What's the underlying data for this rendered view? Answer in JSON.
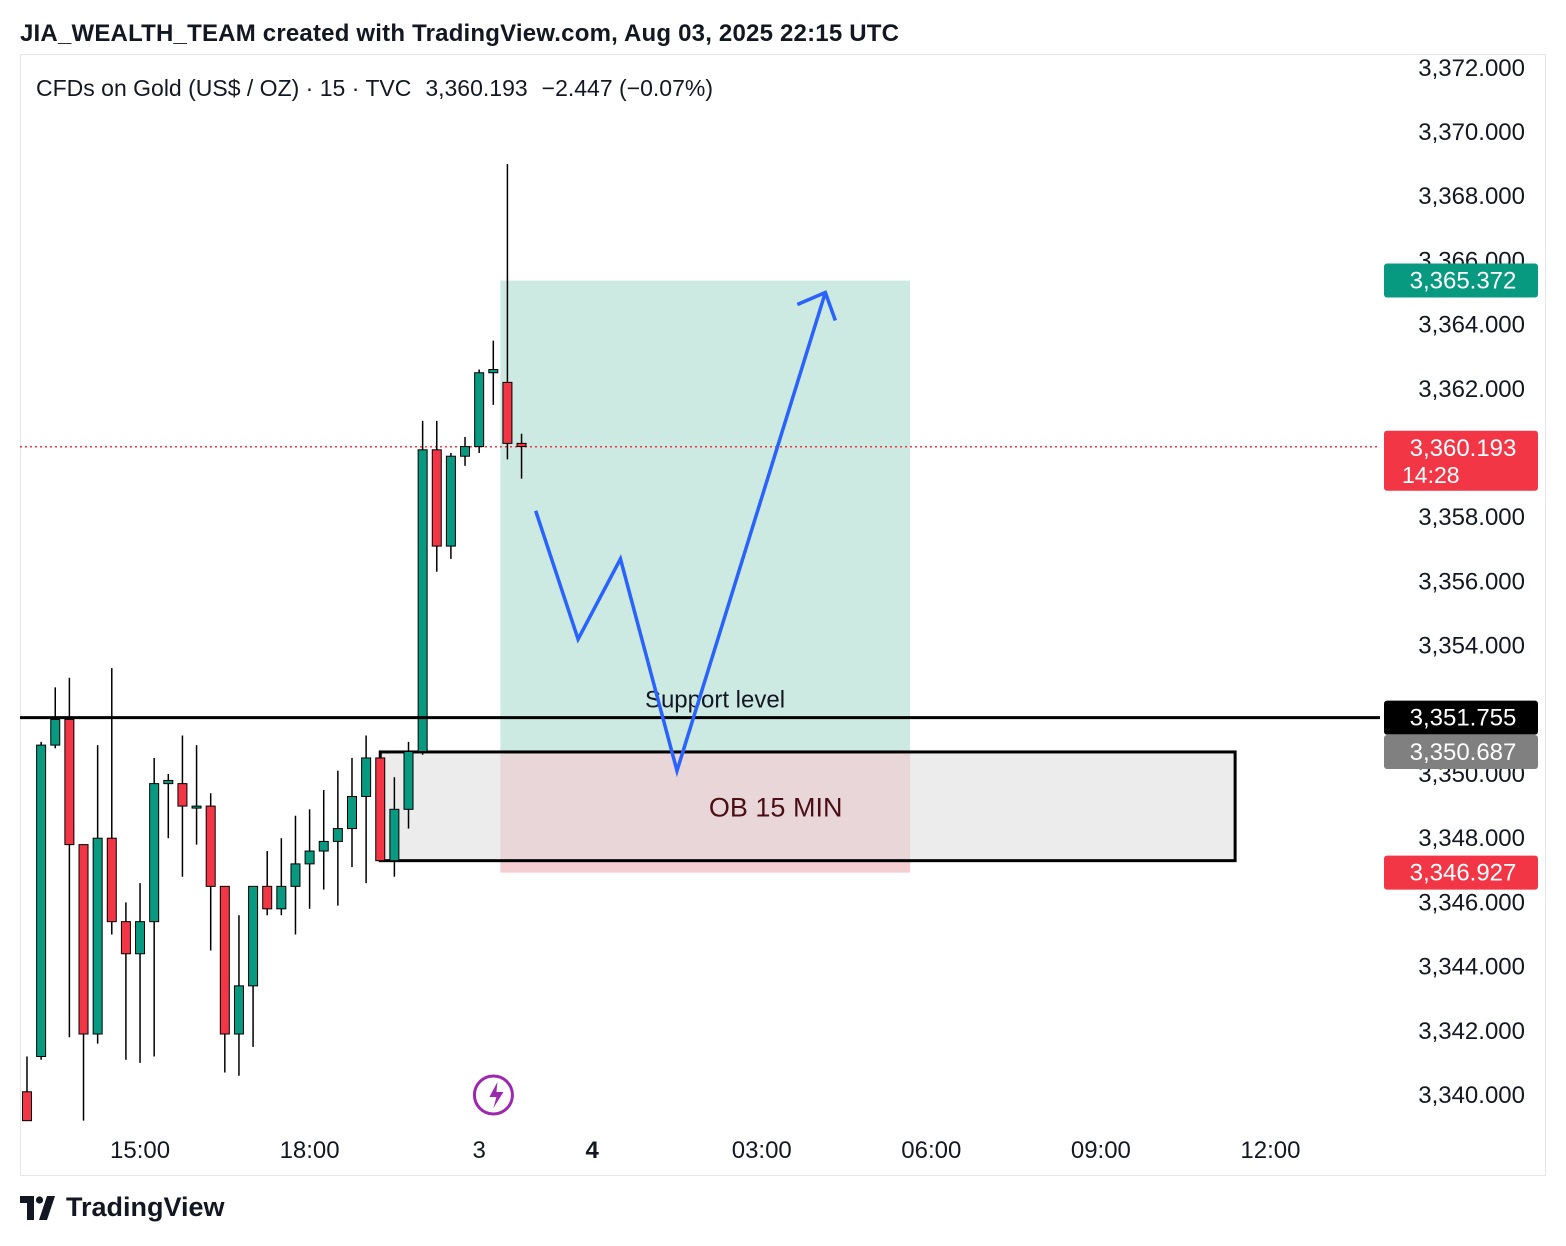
{
  "header": {
    "title": "JIA_WEALTH_TEAM created with TradingView.com, Aug 03, 2025 22:15 UTC"
  },
  "legend": {
    "symbol": "CFDs on Gold (US$ / OZ) · 15 · TVC",
    "last": "3,360.193",
    "change": "−2.447 (−0.07%)"
  },
  "colors": {
    "up": "#089981",
    "down": "#f23645",
    "target_zone": "#cce9e2",
    "stop_zone": "#f3c5cb",
    "ob_box": "#dcdcdc",
    "arrow": "#2962ff",
    "last_price_line": "#f23645",
    "flash_icon": "#9c27b0"
  },
  "chart_data": {
    "type": "candlestick",
    "symbol": "CFDs on Gold (US$ / OZ)",
    "interval": "15",
    "y_range": [
      3339,
      3373
    ],
    "y_ticks": [
      "3,340.000",
      "3,342.000",
      "3,344.000",
      "3,346.000",
      "3,348.000",
      "3,350.000",
      "3,352.000",
      "3,354.000",
      "3,356.000",
      "3,358.000",
      "3,360.000",
      "3,362.000",
      "3,364.000",
      "3,366.000",
      "3,368.000",
      "3,370.000",
      "3,372.000"
    ],
    "y_tick_values": [
      3340,
      3342,
      3344,
      3346,
      3348,
      3350,
      3352,
      3354,
      3356,
      3358,
      3360,
      3362,
      3364,
      3366,
      3368,
      3370,
      3372
    ],
    "x_labels": [
      {
        "label": "15:00",
        "bar": 8,
        "bold": false
      },
      {
        "label": "18:00",
        "bar": 20,
        "bold": false
      },
      {
        "label": "3",
        "bar": 32,
        "bold": false
      },
      {
        "label": "4",
        "bar": 40,
        "bold": true
      },
      {
        "label": "03:00",
        "bar": 52,
        "bold": false
      },
      {
        "label": "06:00",
        "bar": 64,
        "bold": false
      },
      {
        "label": "09:00",
        "bar": 76,
        "bold": false
      },
      {
        "label": "12:00",
        "bar": 88,
        "bold": false
      }
    ],
    "candles": [
      [
        3340.1,
        3339.2,
        3341.2,
        3339.2
      ],
      [
        3341.2,
        3350.9,
        3351.0,
        3341.1
      ],
      [
        3350.9,
        3351.7,
        3352.7,
        3350.8
      ],
      [
        3351.7,
        3347.8,
        3353.0,
        3341.8
      ],
      [
        3347.8,
        3341.9,
        3347.8,
        3339.2
      ],
      [
        3341.9,
        3348.0,
        3350.9,
        3341.6
      ],
      [
        3348.0,
        3345.4,
        3353.3,
        3345.0
      ],
      [
        3345.4,
        3344.4,
        3346.0,
        3341.1
      ],
      [
        3344.4,
        3345.4,
        3346.6,
        3341.0
      ],
      [
        3345.4,
        3349.7,
        3350.5,
        3341.2
      ],
      [
        3349.7,
        3349.8,
        3350.0,
        3348.0
      ],
      [
        3349.7,
        3349.0,
        3351.2,
        3346.8
      ],
      [
        3349.0,
        3349.0,
        3350.9,
        3347.8
      ],
      [
        3349.0,
        3346.5,
        3349.4,
        3344.5
      ],
      [
        3346.5,
        3341.9,
        3346.5,
        3340.7
      ],
      [
        3341.9,
        3343.4,
        3345.6,
        3340.6
      ],
      [
        3343.4,
        3346.5,
        3346.5,
        3341.5
      ],
      [
        3346.5,
        3345.8,
        3347.6,
        3345.6
      ],
      [
        3345.8,
        3346.5,
        3348.0,
        3345.6
      ],
      [
        3346.5,
        3347.2,
        3348.7,
        3345.0
      ],
      [
        3347.2,
        3347.6,
        3348.9,
        3345.8
      ],
      [
        3347.6,
        3347.9,
        3349.5,
        3346.4
      ],
      [
        3347.9,
        3348.3,
        3350.1,
        3345.9
      ],
      [
        3348.3,
        3349.3,
        3350.5,
        3347.1
      ],
      [
        3349.3,
        3350.5,
        3351.2,
        3346.6
      ],
      [
        3350.5,
        3347.3,
        3350.7,
        3347.3
      ],
      [
        3347.3,
        3348.9,
        3349.9,
        3346.8
      ],
      [
        3348.9,
        3350.7,
        3351.0,
        3348.3
      ],
      [
        3350.7,
        3360.1,
        3361.0,
        3350.6
      ],
      [
        3360.1,
        3357.1,
        3361.0,
        3356.3
      ],
      [
        3357.1,
        3359.9,
        3360.0,
        3356.7
      ],
      [
        3359.9,
        3360.2,
        3360.5,
        3359.6
      ],
      [
        3360.2,
        3362.5,
        3362.6,
        3360.0
      ],
      [
        3362.5,
        3362.6,
        3363.5,
        3361.5
      ],
      [
        3362.2,
        3360.3,
        3369.0,
        3359.8
      ],
      [
        3360.3,
        3360.2,
        3360.6,
        3359.2
      ]
    ],
    "last_price": 3360.193,
    "countdown": "14:28",
    "support_level": 3351.755,
    "position": {
      "target": 3365.372,
      "entry": 3350.687,
      "stop": 3346.927,
      "start_bar": 33.5,
      "end_bar": 62.5
    },
    "order_block": {
      "top": 3350.687,
      "bottom": 3347.3,
      "start_bar": 25,
      "end_bar": 85.5
    },
    "projection_path": [
      [
        36.0,
        3358.2
      ],
      [
        39.0,
        3354.2
      ],
      [
        42.0,
        3356.7
      ],
      [
        46.0,
        3350.1
      ],
      [
        56.5,
        3365.0
      ]
    ]
  },
  "price_labels": [
    {
      "text": "3,365.372",
      "price": 3365.372,
      "bg": "#089981",
      "fg": "#ffffff"
    },
    {
      "text": "3,360.193",
      "price": 3360.193,
      "bg": "#f23645",
      "fg": "#ffffff",
      "sub": "14:28"
    },
    {
      "text": "3,351.755",
      "price": 3351.755,
      "bg": "#000000",
      "fg": "#ffffff"
    },
    {
      "text": "3,350.687",
      "price": 3350.687,
      "bg": "#808080",
      "fg": "#ffffff"
    },
    {
      "text": "3,346.927",
      "price": 3346.927,
      "bg": "#f23645",
      "fg": "#ffffff"
    }
  ],
  "annotations": {
    "support_text": "Support level",
    "ob_text": "OB 15 MIN"
  },
  "footer": {
    "brand": "TradingView"
  }
}
